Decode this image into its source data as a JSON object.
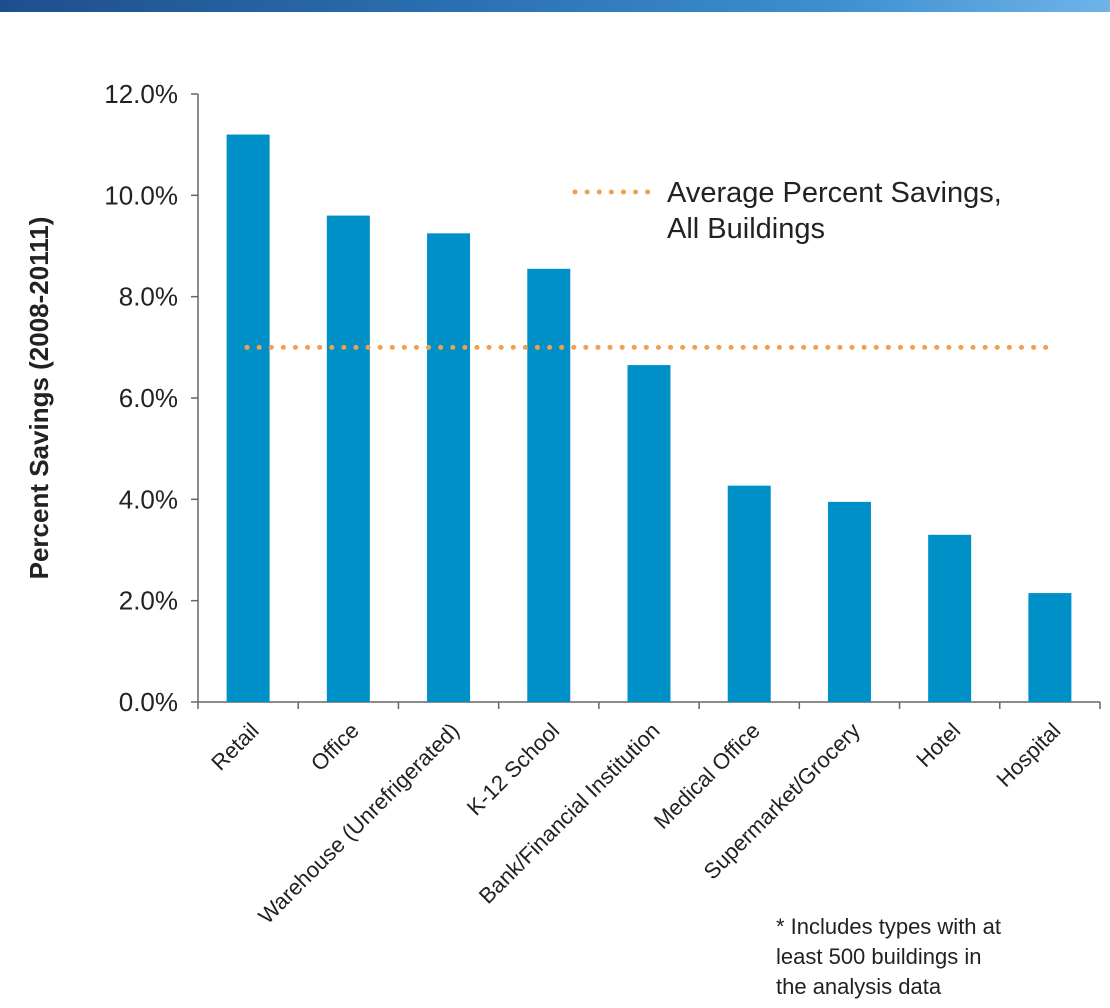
{
  "chart_data": {
    "type": "bar",
    "title": "",
    "xlabel": "",
    "ylabel": "Percent Savings (2008-20111)",
    "categories": [
      "Retail",
      "Office",
      "Warehouse (Unrefrigerated)",
      "K-12 School",
      "Bank/Financial Institution",
      "Medical Office",
      "Supermarket/Grocery",
      "Hotel",
      "Hospital"
    ],
    "values": [
      11.2,
      9.6,
      9.25,
      8.55,
      6.65,
      4.27,
      3.95,
      3.3,
      2.15
    ],
    "ylim": [
      0,
      12
    ],
    "yticks": [
      "0.0%",
      "2.0%",
      "4.0%",
      "6.0%",
      "8.0%",
      "10.0%",
      "12.0%"
    ],
    "bar_color": "#0090c8",
    "reference_line": {
      "name": "Average Percent Savings, All Buildings",
      "label_lines": [
        "Average Percent Savings,",
        "All Buildings"
      ],
      "value": 7.0,
      "color": "#f0a050"
    },
    "legend_position": "top-right",
    "grid": false
  },
  "footnote": "* Includes types with at\nleast 500 buildings in\nthe analysis data"
}
